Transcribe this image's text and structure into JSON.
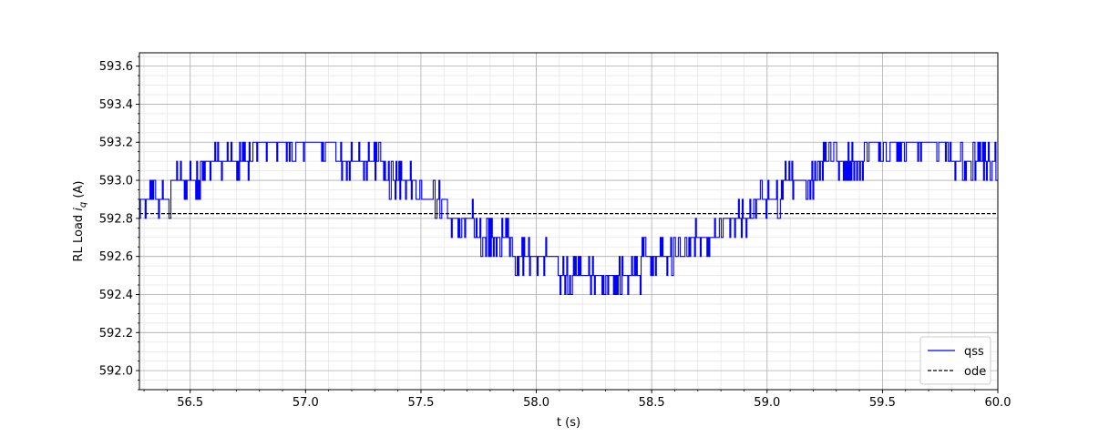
{
  "chart_data": {
    "type": "line",
    "title": "",
    "xlabel": "t (s)",
    "ylabel_prefix": "RL Load ",
    "ylabel_var": "i",
    "ylabel_sub": "q",
    "ylabel_suffix": " (A)",
    "xlim": [
      56.28,
      60.0
    ],
    "ylim": [
      591.9,
      593.67
    ],
    "xticks": [
      56.5,
      57.0,
      57.5,
      58.0,
      58.5,
      59.0,
      59.5,
      60.0
    ],
    "xtick_labels": [
      "56.5",
      "57.0",
      "57.5",
      "58.0",
      "58.5",
      "59.0",
      "59.5",
      "60.0"
    ],
    "yticks": [
      592.0,
      592.2,
      592.4,
      592.6,
      592.8,
      593.0,
      593.2,
      593.4,
      593.6
    ],
    "ytick_labels": [
      "592.0",
      "592.2",
      "592.4",
      "592.6",
      "592.8",
      "593.0",
      "593.2",
      "593.4",
      "593.6"
    ],
    "grid": true,
    "minor_grid": true,
    "legend_position": "bottom-right",
    "series": [
      {
        "name": "qss",
        "color": "#0000ff",
        "style": "solid",
        "description": "quantized step trace oscillating about the ode value",
        "period_s": 2.65,
        "mean": 592.85,
        "amplitude": 0.33,
        "quantum": 0.1,
        "dither_prob": 0.35
      },
      {
        "name": "ode",
        "color": "#000000",
        "style": "dashed",
        "x": [
          56.28,
          60.0
        ],
        "y": [
          592.825,
          592.825
        ]
      }
    ]
  }
}
